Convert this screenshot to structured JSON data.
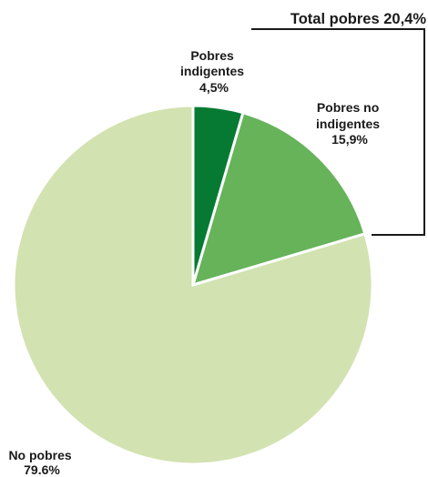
{
  "chart_data": {
    "type": "pie",
    "start_angle_deg": 0,
    "direction": "clockwise",
    "slices": [
      {
        "label_lines": [
          "Pobres",
          "indigentes",
          "4,5%"
        ],
        "value": 4.5,
        "color": "#067a33"
      },
      {
        "label_lines": [
          "Pobres no",
          "indigentes",
          "15,9%"
        ],
        "value": 15.9,
        "color": "#66b35a"
      },
      {
        "label_lines": [
          "No pobres",
          "79.6%"
        ],
        "value": 79.6,
        "color": "#d2e2b1"
      }
    ],
    "bracket": {
      "label": "Total pobres 20,4%",
      "value": 20.4,
      "covers": [
        "Pobres indigentes",
        "Pobres no indigentes"
      ]
    },
    "legend": "none",
    "grid": false
  }
}
